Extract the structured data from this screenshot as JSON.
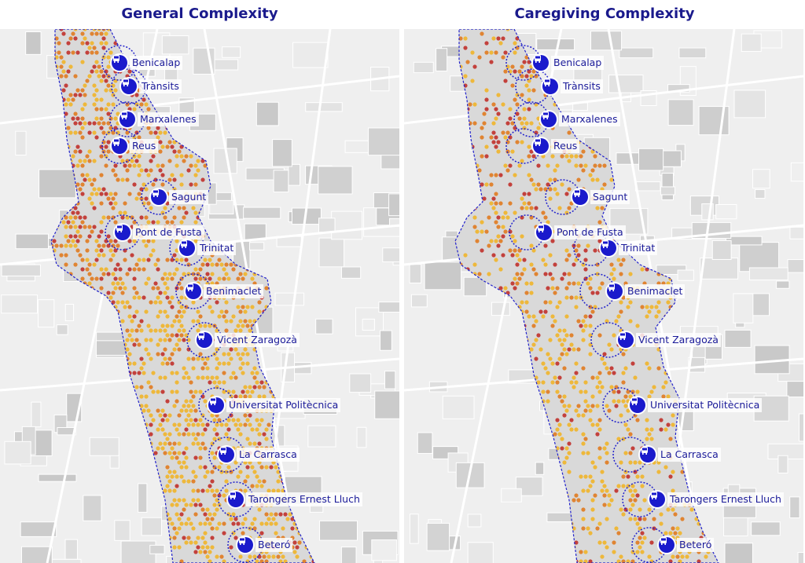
{
  "panels": [
    {
      "title": "General Complexity",
      "stations": [
        "Benicalap",
        "Trànsits",
        "Marxalenes",
        "Reus",
        "Sagunt",
        "Pont de Fusta",
        "Trinitat",
        "Benimaclet",
        "Vicent Zaragozà",
        "Universitat Politècnica",
        "La Carrasca",
        "Tarongers Ernest Lluch",
        "Beteró"
      ]
    },
    {
      "title": "Caregiving Complexity",
      "stations": [
        "Benicalap",
        "Trànsits",
        "Marxalenes",
        "Reus",
        "Sagunt",
        "Pont de Fusta",
        "Trinitat",
        "Benimaclet",
        "Vicent Zaragozà",
        "Universitat Politècnica",
        "La Carrasca",
        "Tarongers Ernest Lluch",
        "Beteró"
      ]
    }
  ],
  "colors": {
    "title": "#1a1a8c",
    "station_icon": "#1a1acc",
    "corridor_outline": "#2222cc",
    "hex_fill": "#d9d9d9",
    "high_complexity": "#c0302a",
    "medium_complexity": "#e07a1f",
    "low_complexity": "#f0b429"
  },
  "icons": {
    "station": "bus-icon"
  }
}
